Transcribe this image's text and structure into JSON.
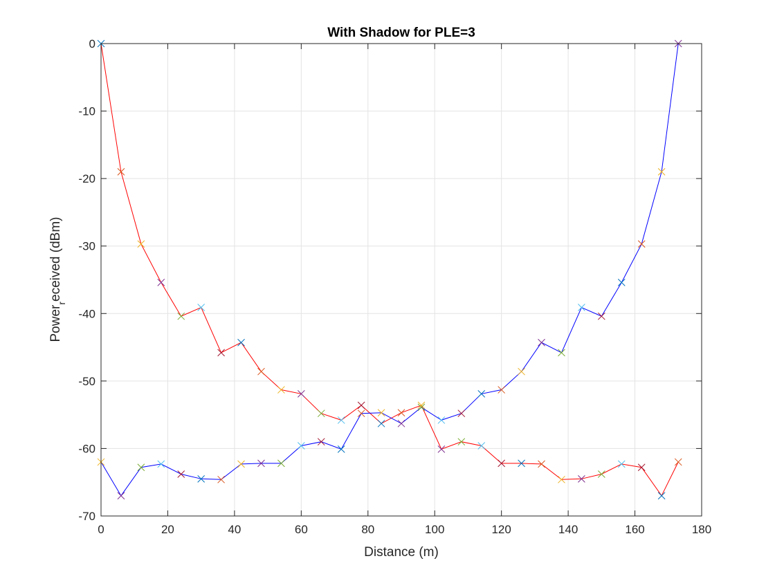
{
  "chart_data": {
    "type": "line",
    "title": "With Shadow for PLE=3",
    "xlabel": "Distance (m)",
    "ylabel": {
      "main": "Power",
      "subscript": "r",
      "rest": "eceived (dBm)"
    },
    "xlim": [
      0,
      180
    ],
    "ylim": [
      -70,
      0
    ],
    "xticks": [
      0,
      20,
      40,
      60,
      80,
      100,
      120,
      140,
      160,
      180
    ],
    "yticks": [
      0,
      -10,
      -20,
      -30,
      -40,
      -50,
      -60,
      -70
    ],
    "grid": true,
    "marker": "x",
    "marker_colors": [
      "#0072BD",
      "#D95319",
      "#EDB120",
      "#7E2F8E",
      "#77AC30",
      "#4DBEEE",
      "#A2142F"
    ],
    "series": [
      {
        "color": "#ff0000",
        "x": [
          0,
          6,
          12,
          18,
          24,
          30,
          36,
          42,
          48,
          54,
          60,
          66,
          72,
          78,
          84,
          90,
          96,
          102,
          108,
          114,
          120,
          126,
          132,
          138,
          144,
          150,
          156,
          162,
          168,
          173
        ],
        "y": [
          0,
          -19.0,
          -29.7,
          -35.4,
          -40.4,
          -39.1,
          -45.8,
          -44.3,
          -48.6,
          -51.3,
          -51.9,
          -54.8,
          -55.8,
          -53.6,
          -56.3,
          -54.7,
          -53.6,
          -60.1,
          -59.0,
          -59.6,
          -62.2,
          -62.2,
          -62.3,
          -64.6,
          -64.5,
          -63.8,
          -62.3,
          -62.8,
          -67.0,
          -62.0
        ]
      },
      {
        "color": "#0000ff",
        "x": [
          0,
          6,
          12,
          18,
          24,
          30,
          36,
          42,
          48,
          54,
          60,
          66,
          72,
          78,
          84,
          90,
          96,
          102,
          108,
          114,
          120,
          126,
          132,
          138,
          144,
          150,
          156,
          162,
          168,
          173
        ],
        "y": [
          -62.0,
          -67.0,
          -62.8,
          -62.3,
          -63.8,
          -64.5,
          -64.6,
          -62.3,
          -62.2,
          -62.2,
          -59.6,
          -59.0,
          -60.1,
          -54.8,
          -54.7,
          -56.3,
          -53.9,
          -55.8,
          -54.8,
          -51.9,
          -51.3,
          -48.6,
          -44.3,
          -45.8,
          -39.1,
          -40.4,
          -35.4,
          -29.7,
          -19.0,
          0
        ]
      }
    ]
  }
}
